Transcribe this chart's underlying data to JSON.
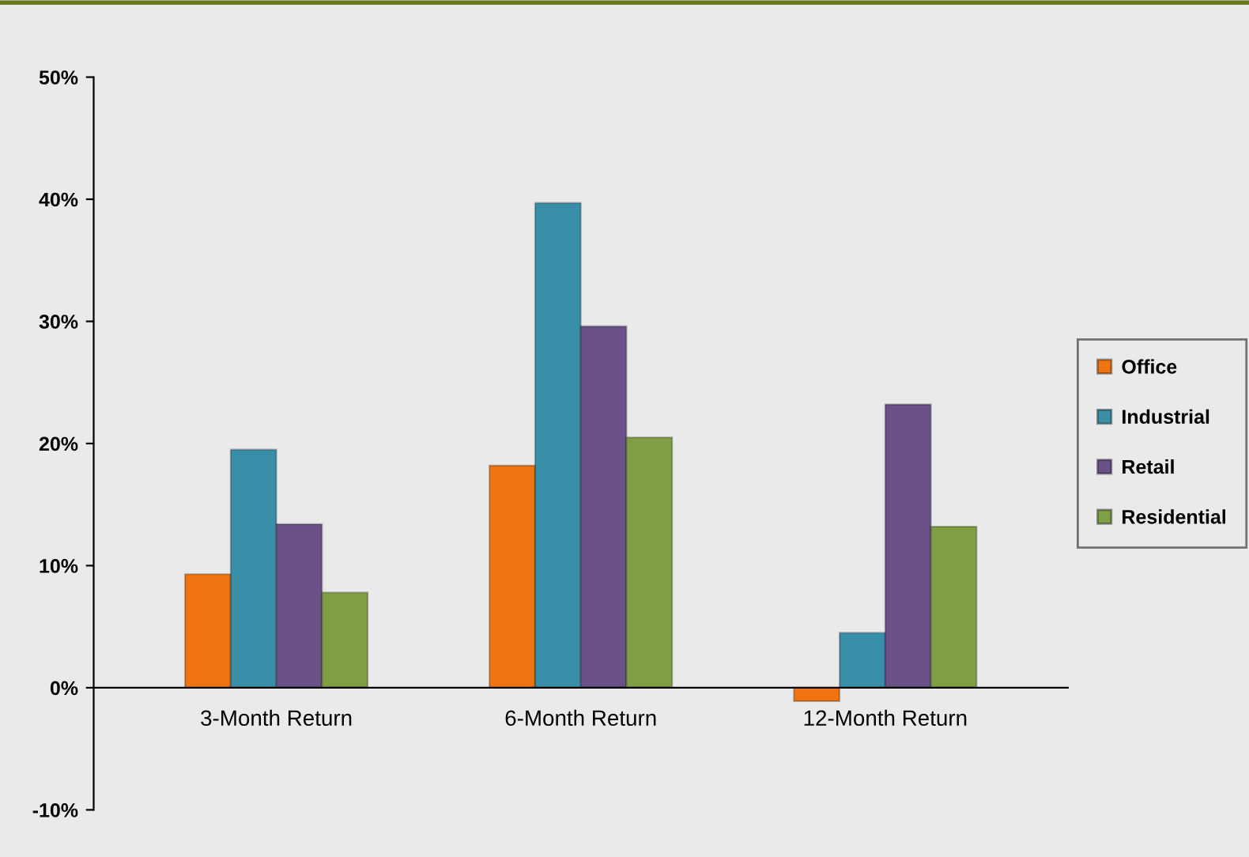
{
  "chart_data": {
    "type": "bar",
    "categories": [
      "3-Month Return",
      "6-Month Return",
      "12-Month Return"
    ],
    "series": [
      {
        "name": "Office",
        "color": "#f07510",
        "values": [
          9.3,
          18.2,
          -1.1
        ]
      },
      {
        "name": "Industrial",
        "color": "#3a8fa8",
        "values": [
          19.5,
          39.7,
          4.5
        ]
      },
      {
        "name": "Retail",
        "color": "#6a5288",
        "values": [
          13.4,
          29.6,
          23.2
        ]
      },
      {
        "name": "Residential",
        "color": "#7f9f45",
        "values": [
          7.8,
          20.5,
          13.2
        ]
      }
    ],
    "ylim": [
      -10,
      50
    ],
    "yticks": [
      {
        "value": -10,
        "label": "-10%"
      },
      {
        "value": 0,
        "label": "0%"
      },
      {
        "value": 10,
        "label": "10%"
      },
      {
        "value": 20,
        "label": "20%"
      },
      {
        "value": 30,
        "label": "30%"
      },
      {
        "value": 40,
        "label": "40%"
      },
      {
        "value": 50,
        "label": "50%"
      }
    ],
    "legend": "right"
  }
}
